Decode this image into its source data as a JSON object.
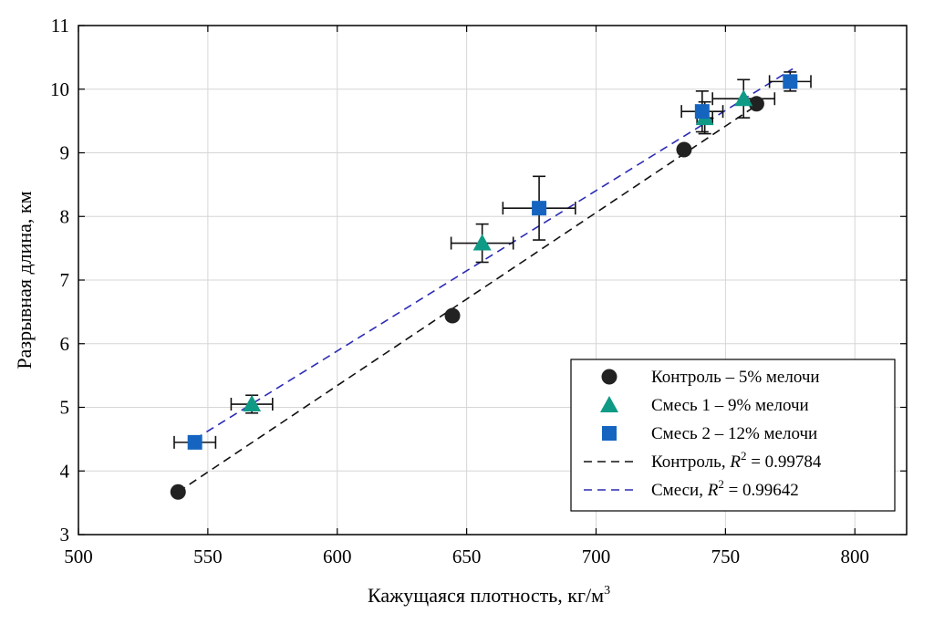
{
  "chart_data": {
    "type": "scatter",
    "xlabel": "Кажущаяся плотность, кг/м",
    "xlabel_sup": "3",
    "ylabel": "Разрывная длина, км",
    "xlim": [
      500,
      820
    ],
    "ylim": [
      3,
      11
    ],
    "xticks": [
      500,
      550,
      600,
      650,
      700,
      750,
      800
    ],
    "yticks": [
      3,
      4,
      5,
      6,
      7,
      8,
      9,
      10,
      11
    ],
    "grid": true,
    "legend_position": "bottom-right",
    "series": [
      {
        "name": "Контроль – 5% мелочи",
        "marker": "circle",
        "color": "#222222",
        "points": [
          {
            "x": 538.5,
            "y": 3.67
          },
          {
            "x": 644.5,
            "y": 6.44
          },
          {
            "x": 734,
            "y": 9.05
          },
          {
            "x": 762,
            "y": 9.77
          }
        ]
      },
      {
        "name": "Смесь 1 – 9% мелочи",
        "marker": "triangle",
        "color": "#0f9a86",
        "points": [
          {
            "x": 567,
            "y": 5.05,
            "xerr": 8,
            "yerr": 0.14
          },
          {
            "x": 656,
            "y": 7.58,
            "xerr": 12,
            "yerr": 0.3
          },
          {
            "x": 742,
            "y": 9.55,
            "xerr": 3,
            "yerr": 0.25
          },
          {
            "x": 757,
            "y": 9.85,
            "xerr": 12,
            "yerr": 0.3
          }
        ]
      },
      {
        "name": "Смесь 2 – 12% мелочи",
        "marker": "square",
        "color": "#1565c0",
        "points": [
          {
            "x": 545,
            "y": 4.45,
            "xerr": 8,
            "yerr": 0
          },
          {
            "x": 678,
            "y": 8.13,
            "xerr": 14,
            "yerr": 0.5
          },
          {
            "x": 741,
            "y": 9.65,
            "xerr": 8,
            "yerr": 0.32
          },
          {
            "x": 775,
            "y": 10.12,
            "xerr": 8,
            "yerr": 0.15
          }
        ]
      }
    ],
    "fits": [
      {
        "name_prefix": "Контроль, ",
        "r2_label": "R",
        "r2_sup": "2",
        "r2_text": " = 0.99784",
        "color": "#111111",
        "x": [
          538.5,
          764
        ],
        "y": [
          3.67,
          9.8
        ]
      },
      {
        "name_prefix": "Смеси, ",
        "r2_label": "R",
        "r2_sup": "2",
        "r2_text": " = 0.99642",
        "color": "#2b2bb5",
        "x": [
          545,
          776
        ],
        "y": [
          4.5,
          10.32
        ]
      }
    ]
  }
}
